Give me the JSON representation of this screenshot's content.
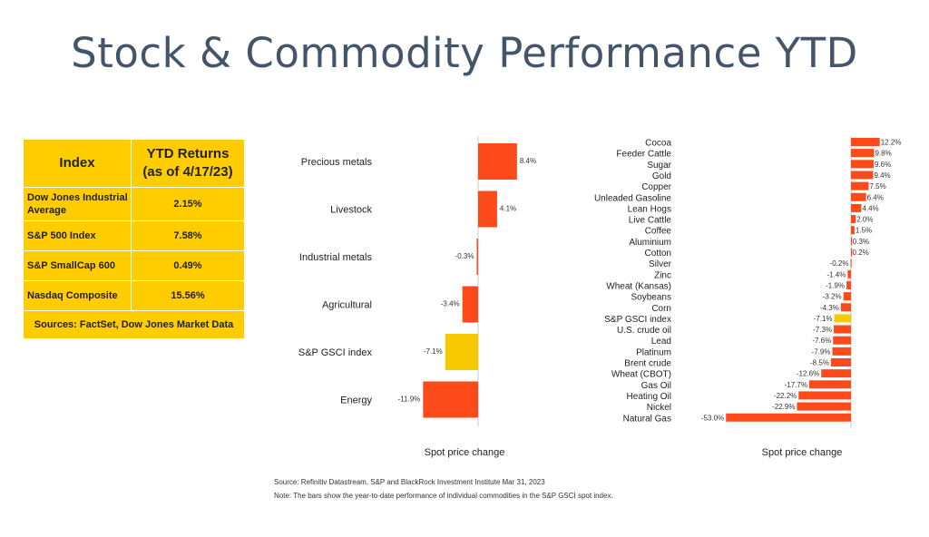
{
  "title": "Stock & Commodity Performance YTD",
  "index_table": {
    "header_index": "Index",
    "header_returns_line1": "YTD Returns",
    "header_returns_line2": "(as of 4/17/23)",
    "rows": [
      {
        "name": "Dow Jones Industrial Average",
        "value": "2.15%"
      },
      {
        "name": "S&P 500 Index",
        "value": "7.58%"
      },
      {
        "name": "S&P SmallCap 600",
        "value": "0.49%"
      },
      {
        "name": "Nasdaq Composite",
        "value": "15.56%"
      }
    ],
    "sources": "Sources: FactSet, Dow Jones Market Data",
    "color": "#ffcc00"
  },
  "chart_data": [
    {
      "type": "bar",
      "orientation": "horizontal",
      "categories": [
        "Precious metals",
        "Livestock",
        "Industrial metals",
        "Agricultural",
        "S&P GSCI index",
        "Energy"
      ],
      "values": [
        8.4,
        4.1,
        -0.3,
        -3.4,
        -7.1,
        -11.9
      ],
      "value_labels": [
        "8.4%",
        "4.1%",
        "-0.3%",
        "-3.4%",
        "-7.1%",
        "-11.9%"
      ],
      "highlight": "S&P GSCI index",
      "xlabel": "Spot price change",
      "xlim": [
        -12,
        9
      ],
      "colors": {
        "bar": "#fc4a1a",
        "highlight": "#f5c800"
      }
    },
    {
      "type": "bar",
      "orientation": "horizontal",
      "categories": [
        "Cocoa",
        "Feeder Cattle",
        "Sugar",
        "Gold",
        "Copper",
        "Unleaded Gasoline",
        "Lean Hogs",
        "Live Cattle",
        "Coffee",
        "Aluminium",
        "Cotton",
        "Silver",
        "Zinc",
        "Wheat (Kansas)",
        "Soybeans",
        "Corn",
        "S&P GSCI index",
        "U.S. crude oil",
        "Lead",
        "Platinum",
        "Brent crude",
        "Wheat (CBOT)",
        "Gas Oil",
        "Heating Oil",
        "Nickel",
        "Natural Gas"
      ],
      "values": [
        12.2,
        9.8,
        9.6,
        9.4,
        7.5,
        6.4,
        4.4,
        2.0,
        1.5,
        0.3,
        0.2,
        -0.2,
        -1.4,
        -1.9,
        -3.2,
        -4.3,
        -7.1,
        -7.3,
        -7.6,
        -7.9,
        -8.5,
        -12.6,
        -17.7,
        -22.2,
        -22.9,
        -53.0
      ],
      "value_labels": [
        "12.2%",
        "9.8%",
        "9.6%",
        "9.4%",
        "7.5%",
        "6.4%",
        "4.4%",
        "2.0%",
        "1.5%",
        "0.3%",
        "0.2%",
        "-0.2%",
        "-1.4%",
        "-1.9%",
        "-3.2%",
        "-4.3%",
        "-7.1%",
        "-7.3%",
        "-7.6%",
        "-7.9%",
        "-8.5%",
        "-12.6%",
        "-17.7%",
        "-22.2%",
        "-22.9%",
        "-53.0%"
      ],
      "highlight": "S&P GSCI index",
      "xlabel": "Spot price change",
      "xlim": [
        -53,
        13
      ],
      "colors": {
        "bar": "#fc4a1a",
        "highlight": "#f5c800"
      }
    }
  ],
  "footnotes": {
    "source": "Source: Refinitiv Datastream, S&P and BlackRock Investment Institute Mar 31, 2023",
    "note": "Note: The bars show the year-to-date performance of individual commodities in the S&P GSCI spot index."
  }
}
